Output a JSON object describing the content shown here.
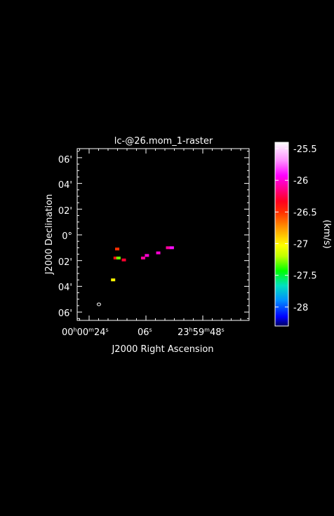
{
  "chart_data": {
    "type": "heatmap",
    "title": "lc-@26.mom_1-raster",
    "xlabel": "J2000 Right Ascension",
    "ylabel": "J2000 Declination",
    "x_ticks": [
      {
        "h": "00",
        "m": "00",
        "s": "24"
      },
      {
        "h": "",
        "m": "",
        "s": "06"
      },
      {
        "h": "23",
        "m": "59",
        "s": "48"
      }
    ],
    "y_ticks": [
      "06'",
      "04'",
      "02'",
      "0°",
      "02'",
      "04'",
      "06'"
    ],
    "colorbar": {
      "label": "(km/s)",
      "ticks": [
        "-25.5",
        "-26",
        "-26.5",
        "-27",
        "-27.5",
        "-28"
      ],
      "range": [
        -28.3,
        -25.4
      ]
    },
    "grid": false,
    "blobs": [
      {
        "ra_s": 15.1,
        "dec_arcmin": -1.1,
        "value": -26.5
      },
      {
        "ra_s": 15.6,
        "dec_arcmin": -1.8,
        "value": -26.4
      },
      {
        "ra_s": 14.7,
        "dec_arcmin": -1.8,
        "value": -27.3
      },
      {
        "ra_s": 13.0,
        "dec_arcmin": -1.95,
        "value": -26.3
      },
      {
        "ra_s": 16.4,
        "dec_arcmin": -3.5,
        "value": -27.0
      },
      {
        "ra_s": 6.9,
        "dec_arcmin": -1.8,
        "value": -26.1
      },
      {
        "ra_s": 5.7,
        "dec_arcmin": -1.6,
        "value": -26.0
      },
      {
        "ra_s": 2.1,
        "dec_arcmin": -1.4,
        "value": -26.0
      },
      {
        "ra_s": -1.0,
        "dec_arcmin": -1.0,
        "value": -26.1
      },
      {
        "ra_s": -2.2,
        "dec_arcmin": -1.0,
        "value": -25.9
      }
    ],
    "beam": {
      "ra_s": 20.9,
      "dec_arcmin": -5.4
    }
  }
}
